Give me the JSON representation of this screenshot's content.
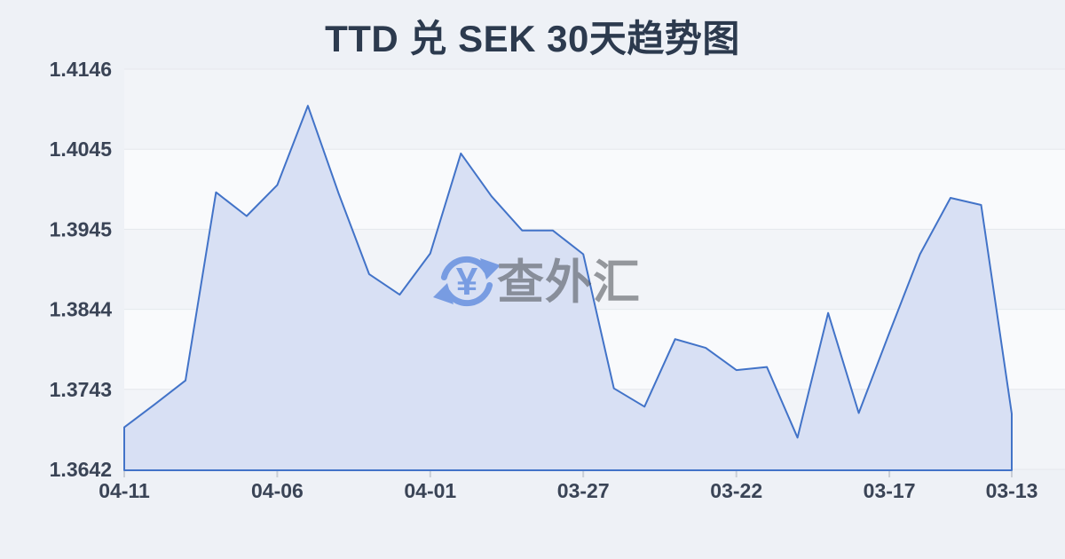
{
  "header": {
    "title": "TTD 兑 SEK 30天趋势图"
  },
  "watermark": {
    "text": "查外汇",
    "icon": "currency-yen-refresh-icon"
  },
  "chart_data": {
    "type": "area",
    "title": "TTD 兑 SEK 30天趋势图",
    "xlabel": "",
    "ylabel": "",
    "x_axis_note": "dates run newest (04-11) on the left to oldest (03-13) on the right",
    "x": [
      "04-11",
      "04-10",
      "04-09",
      "04-08",
      "04-07",
      "04-06",
      "04-05",
      "04-04",
      "04-03",
      "04-02",
      "04-01",
      "03-31",
      "03-30",
      "03-29",
      "03-28",
      "03-27",
      "03-26",
      "03-25",
      "03-24",
      "03-23",
      "03-22",
      "03-21",
      "03-20",
      "03-19",
      "03-18",
      "03-17",
      "03-16",
      "03-15",
      "03-14",
      "03-13"
    ],
    "values": [
      1.3695,
      1.3724,
      1.3754,
      1.3991,
      1.3961,
      1.4,
      1.41,
      1.399,
      1.3888,
      1.3862,
      1.3914,
      1.404,
      1.3986,
      1.3943,
      1.3943,
      1.3913,
      1.3744,
      1.3721,
      1.3806,
      1.3795,
      1.3767,
      1.3771,
      1.3682,
      1.3839,
      1.3713,
      1.3814,
      1.3913,
      1.3984,
      1.3975,
      1.3712
    ],
    "ylim": [
      1.3642,
      1.4146
    ],
    "y_tick_labels": [
      "1.4146",
      "1.4045",
      "1.3945",
      "1.3844",
      "1.3743",
      "1.3642"
    ],
    "x_ticks": [
      {
        "index": 0,
        "label": "04-11"
      },
      {
        "index": 5,
        "label": "04-06"
      },
      {
        "index": 10,
        "label": "04-01"
      },
      {
        "index": 15,
        "label": "03-27"
      },
      {
        "index": 20,
        "label": "03-22"
      },
      {
        "index": 25,
        "label": "03-17"
      },
      {
        "index": 29,
        "label": "03-13"
      }
    ],
    "grid": true,
    "legend": "none",
    "colors": {
      "background": "#eef1f6",
      "band_dark": "#f2f4f8",
      "band_light": "#f9fafc",
      "grid": "#e5e8ec",
      "line": "#4273c8",
      "fill": "#d8e0f4",
      "tick": "#c9ced6",
      "label": "#3a4456",
      "title": "#2c3a4e",
      "watermark_text": "#484c52",
      "watermark_icon": "#2a66d4"
    }
  }
}
